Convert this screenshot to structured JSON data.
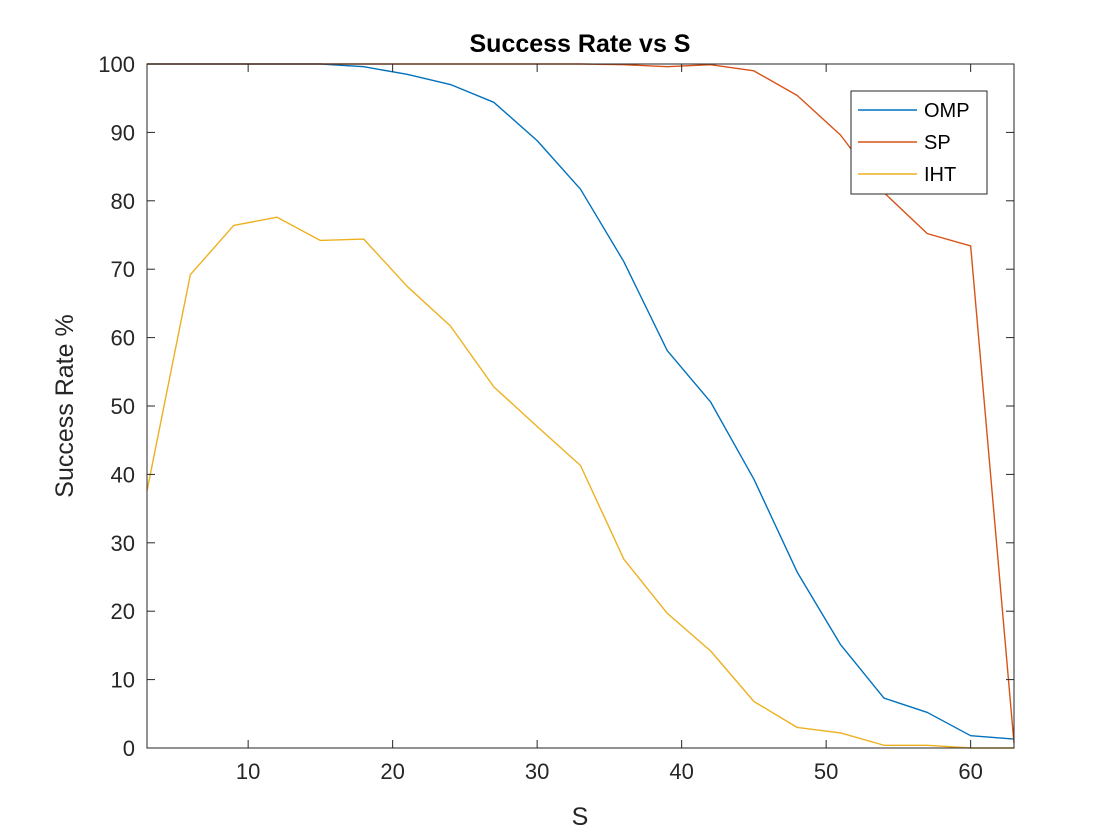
{
  "chart_data": {
    "type": "line",
    "title": "Success Rate vs S",
    "xlabel": "S",
    "ylabel": "Success Rate %",
    "xlim": [
      3,
      63
    ],
    "ylim": [
      0,
      100
    ],
    "xticks": [
      10,
      20,
      30,
      40,
      50,
      60
    ],
    "yticks": [
      0,
      10,
      20,
      30,
      40,
      50,
      60,
      70,
      80,
      90,
      100
    ],
    "grid": false,
    "legend": "top-right",
    "x": [
      3,
      6,
      9,
      12,
      15,
      18,
      21,
      24,
      27,
      30,
      33,
      36,
      39,
      42,
      45,
      48,
      51,
      54,
      57,
      60,
      63
    ],
    "series": [
      {
        "name": "OMP",
        "color": "#0072BD",
        "values": [
          100,
          100,
          100,
          100,
          100,
          99.6,
          98.5,
          97,
          94.4,
          88.8,
          81.7,
          71.1,
          58.1,
          50.6,
          39.3,
          25.7,
          15.1,
          7.3,
          5.2,
          1.8,
          1.3
        ]
      },
      {
        "name": "SP",
        "color": "#D95319",
        "values": [
          100,
          100,
          100,
          100,
          100,
          100,
          100,
          100,
          100,
          100,
          100,
          99.9,
          99.6,
          99.9,
          99,
          95.4,
          89.6,
          81.2,
          75.2,
          73.4,
          0.7
        ]
      },
      {
        "name": "IHT",
        "color": "#EDB120",
        "values": [
          37.6,
          69.2,
          76.4,
          77.6,
          74.2,
          74.4,
          67.5,
          61.7,
          52.8,
          47,
          41.3,
          27.6,
          19.7,
          14.2,
          6.8,
          3,
          2.2,
          0.4,
          0.4,
          0,
          0
        ]
      }
    ]
  }
}
